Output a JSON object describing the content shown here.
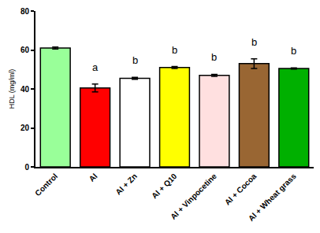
{
  "chart_data": {
    "type": "bar",
    "y_label": "HDL (mg/ml)",
    "categories": [
      "Control",
      "Al",
      "Al + Zn",
      "Al + Q10",
      "Al + Vinpocetine",
      "Al + Cocoa",
      "Al + Wheat grass"
    ],
    "values": [
      61,
      40.5,
      45.5,
      51,
      47,
      53,
      50.5
    ],
    "errors": [
      0.5,
      2,
      0.5,
      0.5,
      0.5,
      2.5,
      0.3
    ],
    "colors": [
      "#99ff99",
      "#ff0000",
      "#ffffff",
      "#ffff00",
      "#ffe0e0",
      "#996633",
      "#00b000"
    ],
    "ylim": [
      0,
      80
    ],
    "yticks": [
      0,
      20,
      40,
      60,
      80
    ],
    "grid": false,
    "annotations": [
      {
        "category": "Al",
        "text": "a"
      },
      {
        "category": "Al + Zn",
        "text": "b"
      },
      {
        "category": "Al + Q10",
        "text": "b"
      },
      {
        "category": "Al + Vinpocetine",
        "text": "b"
      },
      {
        "category": "Al + Cocoa",
        "text": "b"
      },
      {
        "category": "Al + Wheat grass",
        "text": "b"
      }
    ]
  }
}
